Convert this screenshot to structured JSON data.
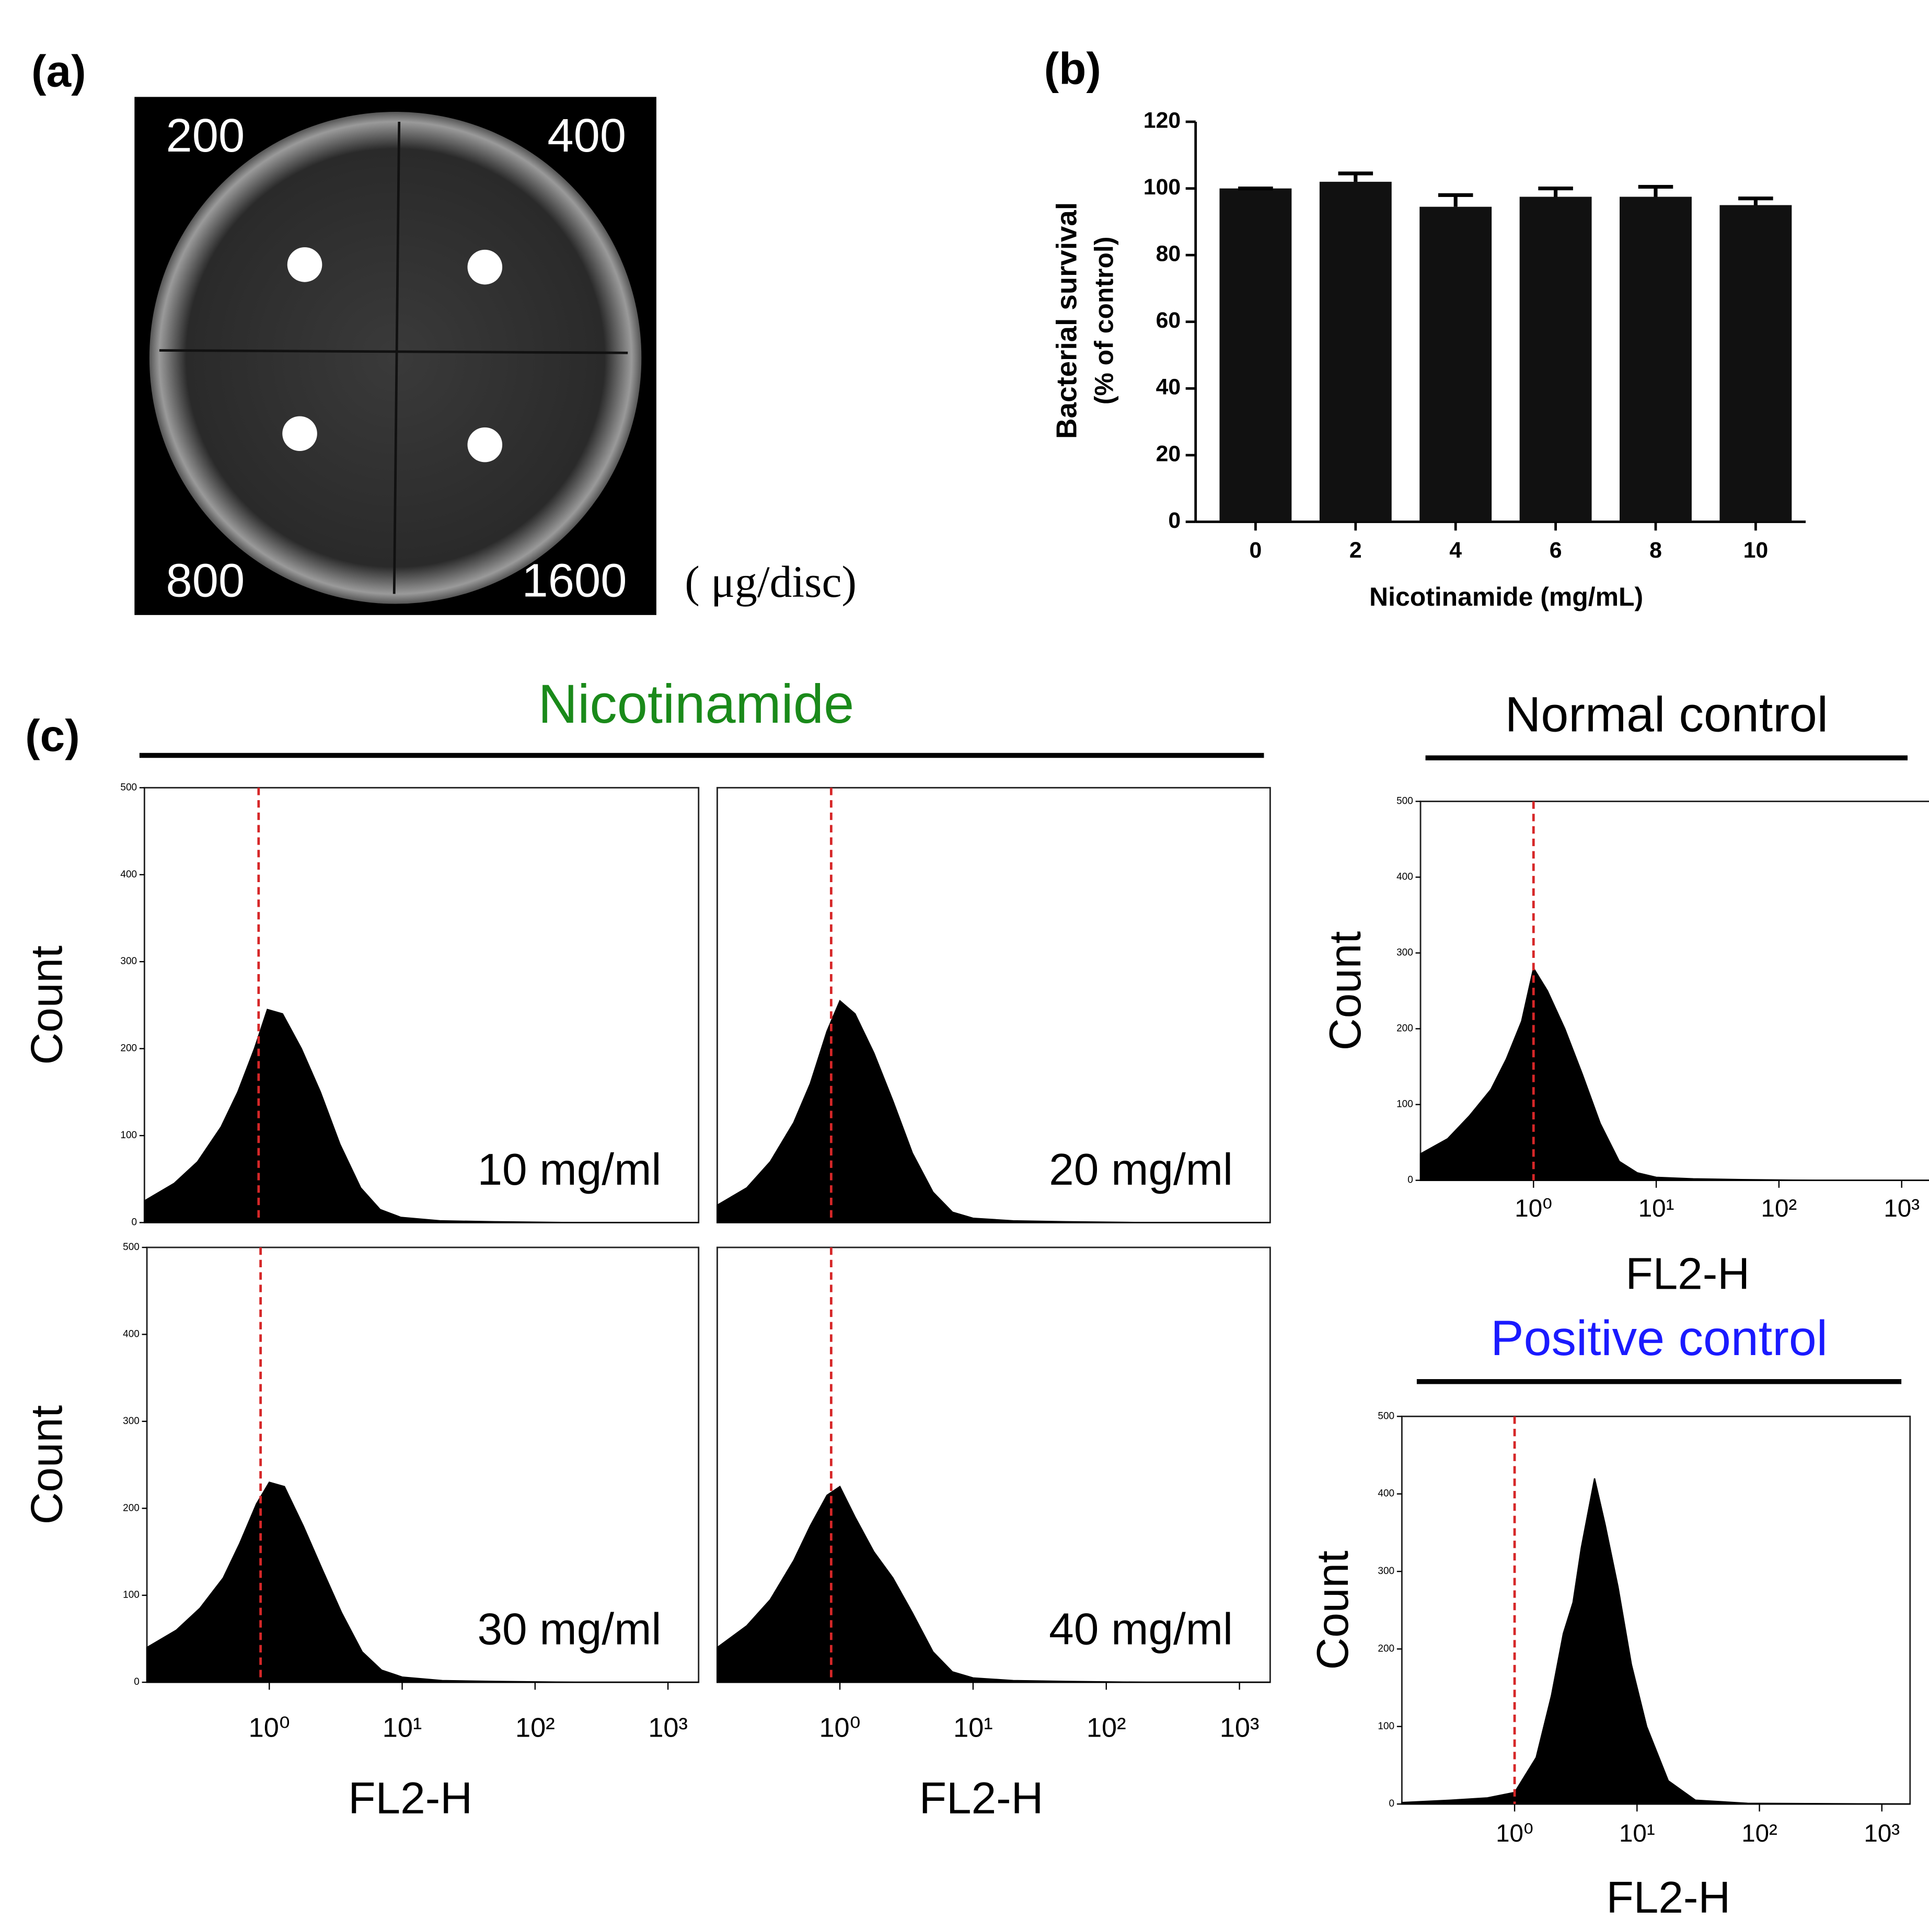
{
  "figure": {
    "panel_labels": [
      "(a)",
      "(b)",
      "(c)"
    ],
    "group_title": "Nicotinamide",
    "plate": {
      "labels": [
        "200",
        "400",
        "800",
        "1600"
      ],
      "unit": "( μg/disc)"
    }
  },
  "chart_data": [
    {
      "type": "bar",
      "categories": [
        "0",
        "2",
        "4",
        "6",
        "8",
        "10"
      ],
      "values": [
        100,
        102,
        94.5,
        97.5,
        97.5,
        95
      ],
      "errors": [
        0,
        2.5,
        3.5,
        2.5,
        3,
        2
      ],
      "color": "#111111",
      "ylim": [
        0,
        120
      ],
      "yticks": [
        0,
        20,
        40,
        60,
        80,
        100,
        120
      ],
      "ylabel": [
        "Bacterial survival",
        "(% of control)"
      ],
      "xlabel": "Nicotinamide (mg/mL)"
    },
    {
      "type": "area",
      "log_x": true,
      "color": "#000000",
      "annotation": "10 mg/ml",
      "reference_line": 0.86,
      "reference_color": "#d62728",
      "x": [
        0.12,
        0.2,
        0.3,
        0.45,
        0.6,
        0.8,
        1,
        1.3,
        1.8,
        2.5,
        3.5,
        5,
        7,
        10,
        20,
        50,
        200,
        1700
      ],
      "values": [
        25,
        45,
        70,
        110,
        150,
        200,
        245,
        240,
        200,
        150,
        90,
        40,
        15,
        6,
        2,
        1,
        0,
        0
      ],
      "xlim": [
        0.12,
        1700
      ],
      "ylim": [
        0,
        500
      ],
      "yticks": [
        0,
        100,
        200,
        300,
        400,
        500
      ],
      "ylabel": "Count"
    },
    {
      "type": "area",
      "log_x": true,
      "color": "#000000",
      "annotation": "20 mg/ml",
      "reference_line": 0.86,
      "reference_color": "#d62728",
      "x": [
        0.12,
        0.2,
        0.3,
        0.45,
        0.6,
        0.8,
        1,
        1.3,
        1.8,
        2.5,
        3.5,
        5,
        7,
        10,
        20,
        50,
        200,
        1700
      ],
      "values": [
        20,
        40,
        70,
        115,
        160,
        220,
        255,
        240,
        195,
        140,
        80,
        35,
        12,
        5,
        2,
        1,
        0,
        0
      ],
      "xlim": [
        0.12,
        1700
      ],
      "ylim": [
        0,
        500
      ]
    },
    {
      "type": "area",
      "log_x": true,
      "color": "#000000",
      "annotation": "30 mg/ml",
      "reference_line": 0.86,
      "reference_color": "#d62728",
      "x": [
        0.12,
        0.2,
        0.3,
        0.45,
        0.6,
        0.8,
        1,
        1.3,
        1.8,
        2.5,
        3.5,
        5,
        7,
        10,
        20,
        50,
        200,
        1700
      ],
      "values": [
        40,
        60,
        85,
        120,
        160,
        205,
        230,
        225,
        180,
        130,
        80,
        35,
        14,
        6,
        2,
        1,
        0,
        0
      ],
      "xlim": [
        0.12,
        1700
      ],
      "ylim": [
        0,
        500
      ],
      "yticks": [
        0,
        100,
        200,
        300,
        400,
        500
      ],
      "xticks": [
        {
          "value": 1,
          "label": "10⁰"
        },
        {
          "value": 10,
          "label": "10¹"
        },
        {
          "value": 100,
          "label": "10²"
        },
        {
          "value": 1000,
          "label": "10³"
        }
      ],
      "ylabel": "Count",
      "xlabel": "FL2-H"
    },
    {
      "type": "area",
      "log_x": true,
      "color": "#000000",
      "annotation": "40 mg/ml",
      "reference_line": 0.86,
      "reference_color": "#d62728",
      "x": [
        0.12,
        0.2,
        0.3,
        0.45,
        0.6,
        0.8,
        1,
        1.3,
        1.8,
        2.5,
        3.5,
        5,
        7,
        10,
        20,
        50,
        200,
        1700
      ],
      "values": [
        40,
        65,
        95,
        140,
        180,
        215,
        225,
        190,
        150,
        120,
        80,
        35,
        12,
        5,
        2,
        1,
        0,
        0
      ],
      "xlim": [
        0.12,
        1700
      ],
      "ylim": [
        0,
        500
      ],
      "xticks": [
        {
          "value": 1,
          "label": "10⁰"
        },
        {
          "value": 10,
          "label": "10¹"
        },
        {
          "value": 100,
          "label": "10²"
        },
        {
          "value": 1000,
          "label": "10³"
        }
      ],
      "xlabel": "FL2-H"
    },
    {
      "type": "area",
      "log_x": true,
      "color": "#000000",
      "title": "Normal control",
      "title_color": "#000000",
      "reference_line": 1,
      "reference_color": "#d62728",
      "x": [
        0.12,
        0.2,
        0.3,
        0.45,
        0.6,
        0.8,
        1,
        1.3,
        1.8,
        2.5,
        3.5,
        5,
        7,
        10,
        20,
        50,
        200,
        1700
      ],
      "values": [
        35,
        55,
        85,
        120,
        160,
        210,
        280,
        250,
        200,
        140,
        75,
        25,
        10,
        4,
        2,
        1,
        0,
        0
      ],
      "xlim": [
        0.12,
        1700
      ],
      "ylim": [
        0,
        500
      ],
      "yticks": [
        0,
        100,
        200,
        300,
        400,
        500
      ],
      "xticks": [
        {
          "value": 1,
          "label": "10⁰"
        },
        {
          "value": 10,
          "label": "10¹"
        },
        {
          "value": 100,
          "label": "10²"
        },
        {
          "value": 1000,
          "label": "10³"
        }
      ],
      "ylabel": "Count",
      "xlabel": "FL2-H"
    },
    {
      "type": "area",
      "log_x": true,
      "color": "#000000",
      "title": "Positive control",
      "title_color": "#1a1aff",
      "reference_line": 1,
      "reference_color": "#d62728",
      "x": [
        0.12,
        0.3,
        0.6,
        1,
        1.5,
        2,
        2.5,
        3,
        3.5,
        4.5,
        5.5,
        7,
        9,
        12,
        18,
        30,
        80,
        1700
      ],
      "values": [
        2,
        5,
        8,
        15,
        60,
        140,
        220,
        260,
        330,
        420,
        360,
        280,
        180,
        100,
        30,
        5,
        1,
        0
      ],
      "xlim": [
        0.12,
        1700
      ],
      "ylim": [
        0,
        500
      ],
      "yticks": [
        0,
        100,
        200,
        300,
        400,
        500
      ],
      "xticks": [
        {
          "value": 1,
          "label": "10⁰"
        },
        {
          "value": 10,
          "label": "10¹"
        },
        {
          "value": 100,
          "label": "10²"
        },
        {
          "value": 1000,
          "label": "10³"
        }
      ],
      "ylabel": "Count",
      "xlabel": "FL2-H"
    }
  ]
}
